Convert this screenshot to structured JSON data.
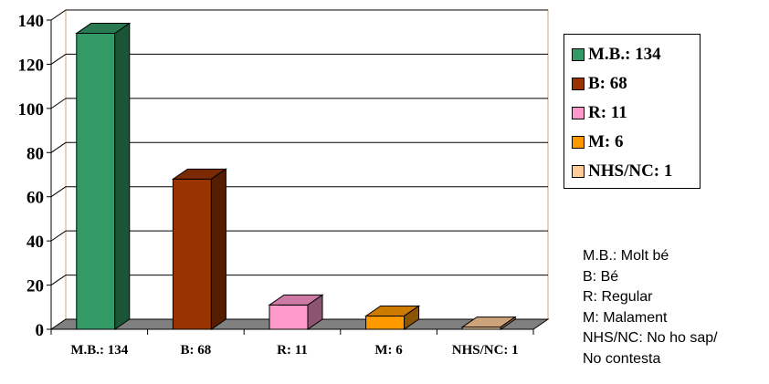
{
  "chart_data": {
    "type": "bar",
    "categories": [
      "M.B.: 134",
      "B: 68",
      "R: 11",
      "M: 6",
      "NHS/NC: 1"
    ],
    "values": [
      134,
      68,
      11,
      6,
      1
    ],
    "colors": [
      "#339966",
      "#993300",
      "#ff99cc",
      "#ff9900",
      "#ffcc99"
    ],
    "ylim": [
      0,
      140
    ],
    "yticks": [
      "0",
      "20",
      "40",
      "60",
      "80",
      "100",
      "120",
      "140"
    ],
    "grid": true,
    "style": "3d",
    "legend": {
      "placement": "right",
      "entries": [
        "M.B.: 134",
        "B: 68",
        "R: 11",
        "M: 6",
        "NHS/NC: 1"
      ]
    }
  },
  "notes": [
    "M.B.: Molt bé",
    "B: Bé",
    "R: Regular",
    "M: Malament",
    "NHS/NC: No ho sap/",
    "No contesta"
  ]
}
